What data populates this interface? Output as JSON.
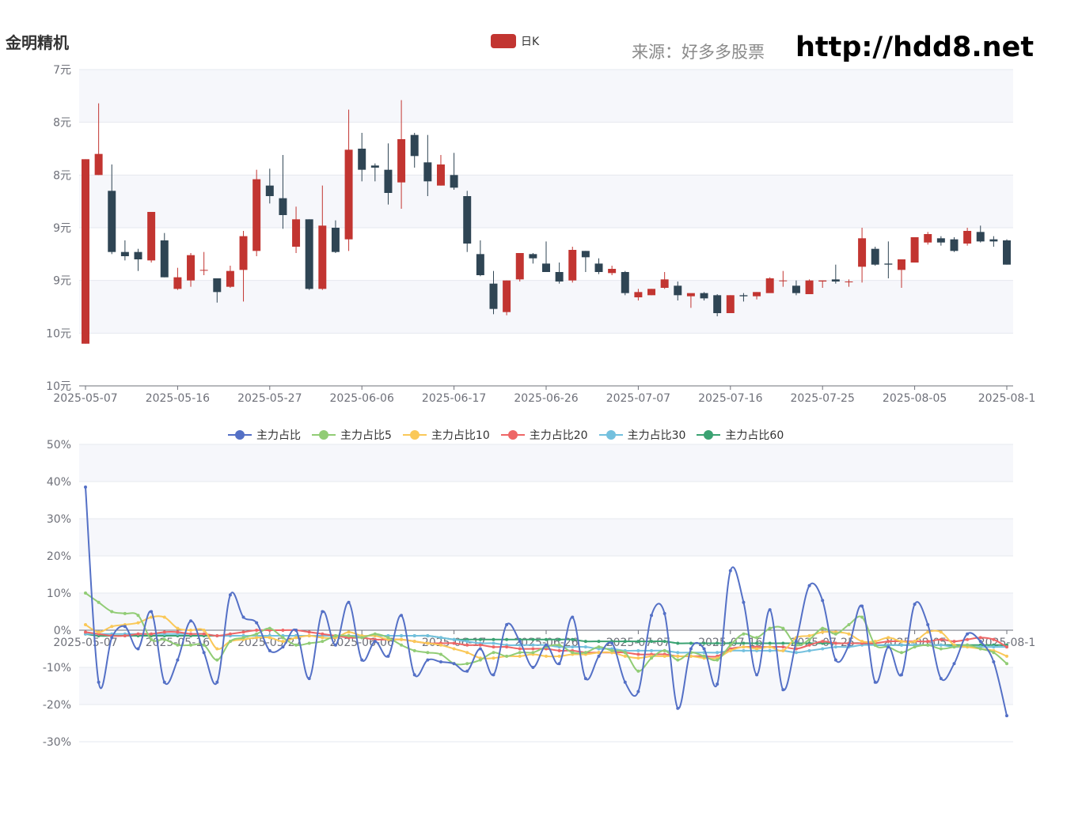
{
  "header": {
    "stock_name": "金明精机",
    "source_label": "来源：好多多股票",
    "site_url": "http://hdd8.net"
  },
  "colors": {
    "up": "#c23531",
    "down": "#2f4554",
    "band": "#f6f7fb",
    "grid": "#e6e8ef"
  },
  "chart_data": [
    {
      "type": "candlestick",
      "legend": [
        "日K"
      ],
      "legend_placement": "top-center",
      "y_tick_labels": [
        "7元",
        "8元",
        "8元",
        "9元",
        "9元",
        "10元",
        "10元"
      ],
      "ylim": [
        7.2,
        10.2
      ],
      "x_tick_labels": [
        "2025-05-07",
        "2025-05-16",
        "2025-05-27",
        "2025-06-06",
        "2025-06-17",
        "2025-06-26",
        "2025-07-07",
        "2025-07-16",
        "2025-07-25",
        "2025-08-05",
        "2025-08-1"
      ],
      "x_tick_indices": [
        0,
        7,
        14,
        21,
        28,
        35,
        42,
        49,
        56,
        63,
        70
      ],
      "candles": [
        [
          7.6,
          9.35,
          7.6,
          9.35
        ],
        [
          9.2,
          9.4,
          9.2,
          9.88
        ],
        [
          9.05,
          8.47,
          8.45,
          9.3
        ],
        [
          8.47,
          8.43,
          8.39,
          8.58
        ],
        [
          8.47,
          8.4,
          8.29,
          8.5
        ],
        [
          8.39,
          8.85,
          8.37,
          8.85
        ],
        [
          8.58,
          8.23,
          8.23,
          8.65
        ],
        [
          8.12,
          8.23,
          8.11,
          8.32
        ],
        [
          8.2,
          8.44,
          8.14,
          8.46
        ],
        [
          8.3,
          8.3,
          8.25,
          8.47
        ],
        [
          8.22,
          8.09,
          7.99,
          8.22
        ],
        [
          8.14,
          8.29,
          8.13,
          8.34
        ],
        [
          8.3,
          8.62,
          8.0,
          8.67
        ],
        [
          8.48,
          9.16,
          8.43,
          9.25
        ],
        [
          9.1,
          9.0,
          8.93,
          9.26
        ],
        [
          8.98,
          8.82,
          8.69,
          9.39
        ],
        [
          8.52,
          8.78,
          8.46,
          8.9
        ],
        [
          8.78,
          8.12,
          8.11,
          8.78
        ],
        [
          8.12,
          8.72,
          8.11,
          9.1
        ],
        [
          8.7,
          8.47,
          8.46,
          8.77
        ],
        [
          8.59,
          9.44,
          8.48,
          9.82
        ],
        [
          9.45,
          9.25,
          9.14,
          9.6
        ],
        [
          9.29,
          9.27,
          9.14,
          9.31
        ],
        [
          9.25,
          9.03,
          8.92,
          9.5
        ],
        [
          9.13,
          9.54,
          8.88,
          9.91
        ],
        [
          9.58,
          9.38,
          9.27,
          9.6
        ],
        [
          9.32,
          9.14,
          9.0,
          9.58
        ],
        [
          9.1,
          9.3,
          9.1,
          9.39
        ],
        [
          9.2,
          9.08,
          9.06,
          9.41
        ],
        [
          9.0,
          8.55,
          8.47,
          9.05
        ],
        [
          8.45,
          8.25,
          8.24,
          8.58
        ],
        [
          8.17,
          7.93,
          7.88,
          8.29
        ],
        [
          7.9,
          8.2,
          7.87,
          8.2
        ],
        [
          8.21,
          8.46,
          8.19,
          8.46
        ],
        [
          8.45,
          8.41,
          8.36,
          8.46
        ],
        [
          8.36,
          8.28,
          8.3,
          8.57
        ],
        [
          8.28,
          8.19,
          8.17,
          8.37
        ],
        [
          8.2,
          8.49,
          8.18,
          8.52
        ],
        [
          8.48,
          8.42,
          8.28,
          8.48
        ],
        [
          8.36,
          8.28,
          8.26,
          8.41
        ],
        [
          8.27,
          8.31,
          8.25,
          8.34
        ],
        [
          8.28,
          8.08,
          8.06,
          8.29
        ],
        [
          8.04,
          8.09,
          8.01,
          8.12
        ],
        [
          8.06,
          8.12,
          8.06,
          8.12
        ],
        [
          8.13,
          8.21,
          8.12,
          8.28
        ],
        [
          8.15,
          8.06,
          8.01,
          8.19
        ],
        [
          8.05,
          8.08,
          7.94,
          8.07
        ],
        [
          8.08,
          8.03,
          8.01,
          8.09
        ],
        [
          8.06,
          7.89,
          7.86,
          8.07
        ],
        [
          7.89,
          8.06,
          7.89,
          8.06
        ],
        [
          8.06,
          8.05,
          8.0,
          8.08
        ],
        [
          8.05,
          8.09,
          8.02,
          8.09
        ],
        [
          8.08,
          8.22,
          8.09,
          8.23
        ],
        [
          8.2,
          8.2,
          8.14,
          8.29
        ],
        [
          8.15,
          8.08,
          8.06,
          8.2
        ],
        [
          8.07,
          8.2,
          8.07,
          8.21
        ],
        [
          8.19,
          8.2,
          8.13,
          8.2
        ],
        [
          8.21,
          8.19,
          8.17,
          8.35
        ],
        [
          8.19,
          8.19,
          8.14,
          8.21
        ],
        [
          8.33,
          8.6,
          8.18,
          8.7
        ],
        [
          8.5,
          8.35,
          8.34,
          8.52
        ],
        [
          8.36,
          8.35,
          8.22,
          8.57
        ],
        [
          8.3,
          8.4,
          8.13,
          8.4
        ],
        [
          8.37,
          8.61,
          8.37,
          8.61
        ],
        [
          8.56,
          8.64,
          8.54,
          8.66
        ],
        [
          8.6,
          8.56,
          8.53,
          8.62
        ],
        [
          8.59,
          8.48,
          8.47,
          8.61
        ],
        [
          8.55,
          8.67,
          8.53,
          8.7
        ],
        [
          8.66,
          8.57,
          8.56,
          8.72
        ],
        [
          8.59,
          8.57,
          8.52,
          8.62
        ],
        [
          8.58,
          8.35,
          8.35,
          8.59
        ]
      ]
    },
    {
      "type": "line",
      "y_tick_labels": [
        "50%",
        "40%",
        "30%",
        "20%",
        "10%",
        "0%",
        "-10%",
        "-20%",
        "-30%"
      ],
      "ylim": [
        -30,
        50
      ],
      "legend_placement": "top-center",
      "x_tick_labels": [
        "2025-05-07",
        "2025-05-16",
        "2025-05-27",
        "2025-06-06",
        "2025-06-17",
        "2025-06-26",
        "2025-07-07",
        "2025-07-16",
        "2025-07-25",
        "2025-08-05",
        "2025-08-1"
      ],
      "x_tick_indices": [
        0,
        7,
        14,
        21,
        28,
        35,
        42,
        49,
        56,
        63,
        70
      ],
      "series": [
        {
          "name": "主力占比",
          "color": "#5470c6",
          "values": [
            38.5,
            -14,
            -2,
            1,
            -5,
            5,
            -14,
            -8,
            2.5,
            -6,
            -14,
            9.5,
            3.5,
            2,
            -5.5,
            -4.5,
            0,
            -13,
            5,
            -4,
            7.5,
            -8,
            -3,
            -7,
            4,
            -12,
            -8,
            -8.5,
            -9,
            -11,
            -5,
            -12,
            1.5,
            -3,
            -10,
            -4,
            -9,
            3.5,
            -13,
            -7,
            -3.5,
            -14,
            -16.5,
            4,
            4.5,
            -21,
            -5,
            -5,
            -14.5,
            16,
            7.5,
            -12,
            5.5,
            -16,
            -3,
            12,
            8,
            -8,
            -4,
            6.5,
            -14,
            -4.5,
            -12,
            7,
            1.5,
            -13,
            -9,
            -1,
            -3,
            -8.5,
            -23
          ]
        },
        {
          "name": "主力占比5",
          "color": "#91cc75",
          "values": [
            10,
            7.5,
            5,
            4.5,
            4,
            -2.5,
            -2.5,
            -4,
            -4,
            -4,
            -8,
            -3,
            -2,
            -1,
            0.5,
            -2,
            -4,
            -3.5,
            -3,
            -1.5,
            -1.5,
            -2,
            -1,
            -2,
            -4,
            -5.5,
            -6,
            -6.5,
            -9,
            -9,
            -8,
            -6,
            -7,
            -6,
            -6,
            -4.5,
            -4,
            -6,
            -6,
            -4.5,
            -5.5,
            -6,
            -11,
            -7.5,
            -5.5,
            -8,
            -6,
            -7,
            -8,
            -4,
            -1,
            -2,
            0.5,
            0.5,
            -4,
            -2.5,
            0.5,
            -1,
            1.5,
            3.5,
            -4,
            -4.5,
            -6,
            -4.5,
            -4,
            -5,
            -4.5,
            -4,
            -5,
            -6,
            -9
          ]
        },
        {
          "name": "主力占比10",
          "color": "#fac858",
          "values": [
            1.5,
            -0.5,
            1,
            1.5,
            2,
            3.5,
            3.5,
            0.5,
            0,
            0,
            -5,
            -3,
            -2.5,
            -2,
            -2,
            -3,
            -2,
            -1.5,
            -2,
            -2,
            -0.5,
            -1.5,
            -1.5,
            -2.5,
            -2.5,
            -3,
            -3.5,
            -4,
            -5,
            -6,
            -7.5,
            -7.5,
            -7,
            -7,
            -6.5,
            -7,
            -7,
            -6.5,
            -6.5,
            -6,
            -6,
            -7,
            -7.5,
            -7,
            -7,
            -7,
            -7,
            -7.5,
            -7.5,
            -5.5,
            -4.5,
            -5,
            -4.5,
            -5.5,
            -2,
            -1.5,
            -0.5,
            -0.5,
            -1,
            -3,
            -3,
            -2,
            -3,
            -3,
            -0.5,
            -0.5,
            -4,
            -4.5,
            -5,
            -5.5,
            -7
          ]
        },
        {
          "name": "主力占比20",
          "color": "#ee6666",
          "values": [
            -0.5,
            -1,
            -1.5,
            -1.5,
            -1,
            -1,
            -0.5,
            -0.5,
            -1,
            -1,
            -1.5,
            -1,
            -0.5,
            0,
            0,
            0,
            0,
            -0.5,
            -1,
            -1.5,
            -2,
            -2,
            -2.5,
            -2.5,
            -2.5,
            -3,
            -3.5,
            -3.5,
            -3.5,
            -4,
            -4,
            -4.5,
            -4.5,
            -5,
            -5,
            -5,
            -5.5,
            -5.5,
            -6,
            -6,
            -6,
            -6,
            -6.5,
            -6.5,
            -6.5,
            -7,
            -7,
            -7,
            -7,
            -5,
            -4.5,
            -4.5,
            -4.5,
            -4.5,
            -5,
            -4,
            -3,
            -3.5,
            -3.5,
            -3.5,
            -3.5,
            -3,
            -3,
            -3,
            -3,
            -2.5,
            -3,
            -2.5,
            -2,
            -2.5,
            -4.5
          ]
        },
        {
          "name": "主力占比30",
          "color": "#73c0de",
          "values": [
            -1,
            -1,
            -1,
            -1,
            -1,
            -1,
            -1,
            -1,
            -1,
            -1,
            -1.5,
            -1.5,
            -1.5,
            -1.5,
            -1.5,
            -1.5,
            -1.5,
            -1.5,
            -1.5,
            -1.5,
            -1.5,
            -1.5,
            -1.5,
            -1.5,
            -1.5,
            -1.5,
            -1.5,
            -2,
            -2.5,
            -3,
            -3.5,
            -3.5,
            -4,
            -4,
            -4,
            -4,
            -4.5,
            -4.5,
            -4.5,
            -5,
            -5,
            -5.5,
            -5.5,
            -5.5,
            -5.5,
            -6,
            -6,
            -6,
            -6,
            -5.5,
            -5.5,
            -5.5,
            -5.5,
            -5.5,
            -6,
            -5.5,
            -5,
            -4.5,
            -4.5,
            -4,
            -4,
            -4,
            -4,
            -4,
            -4,
            -4,
            -4.5,
            -4.5,
            -4.5,
            -4.5,
            -4.5
          ]
        },
        {
          "name": "主力占比60",
          "color": "#3ba272",
          "values": [
            -1,
            -1.5,
            -1.5,
            -1.5,
            -1.5,
            -1.5,
            -1.5,
            -1.5,
            -1.5,
            -1.5,
            -1.5,
            -1.5,
            -1.5,
            -1.5,
            -1.5,
            -1.5,
            -1.5,
            -1.5,
            -1.5,
            -1.5,
            -1.5,
            -1.5,
            -1.5,
            -1.5,
            -1.5,
            -1.5,
            -1.5,
            -2,
            -2.5,
            -2.5,
            -2.5,
            -2.5,
            -2.5,
            -2.5,
            -2.5,
            -2.5,
            -2.5,
            -2.5,
            -3,
            -3,
            -3,
            -3,
            -3,
            -3,
            -3,
            -3.5,
            -3.5,
            -3.5,
            -3.5,
            -3.5,
            -3.5,
            -3.5,
            -3.5,
            -3.5,
            -3.5,
            -3.5,
            -3.5,
            -3.5,
            -3.5,
            -3.5,
            -4,
            -4,
            -4,
            -4,
            -4,
            -4,
            -4,
            -4,
            -4,
            -4,
            -4
          ]
        }
      ]
    }
  ]
}
